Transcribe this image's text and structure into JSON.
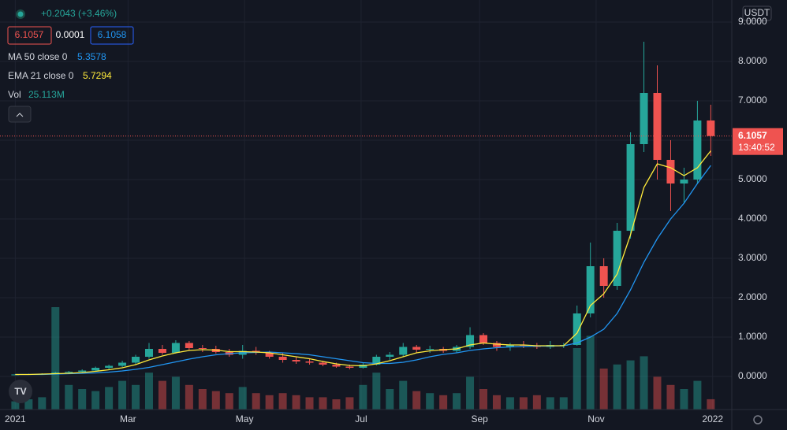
{
  "chart_data": {
    "type": "candlestick",
    "header": {
      "change": "+0.2043 (+3.46%)",
      "bid": "6.1057",
      "spread": "0.0001",
      "ask": "6.1058",
      "vol_name": "Vol",
      "vol_label": "25.113M",
      "currency": "USDT",
      "countdown": "13:40:52"
    },
    "xlim": [
      -8,
      375
    ],
    "xticks": [
      {
        "value": 0,
        "label": "2021"
      },
      {
        "value": 59,
        "label": "Mar"
      },
      {
        "value": 120,
        "label": "May"
      },
      {
        "value": 181,
        "label": "Jul"
      },
      {
        "value": 243,
        "label": "Sep"
      },
      {
        "value": 304,
        "label": "Nov"
      },
      {
        "value": 365,
        "label": "2022"
      }
    ],
    "ylim": [
      -0.84,
      9.56
    ],
    "yticks": [
      {
        "value": 0,
        "label": "0.0000"
      },
      {
        "value": 1,
        "label": "1.0000"
      },
      {
        "value": 2,
        "label": "2.0000"
      },
      {
        "value": 3,
        "label": "3.0000"
      },
      {
        "value": 4,
        "label": "4.0000"
      },
      {
        "value": 5,
        "label": "5.0000"
      },
      {
        "value": 6,
        "label": "6.0000"
      },
      {
        "value": 7,
        "label": "7.0000"
      },
      {
        "value": 8,
        "label": "8.0000"
      },
      {
        "value": 9,
        "label": "9.0000"
      }
    ],
    "grid": true,
    "up_color": "#26a69a",
    "down_color": "#ef5350",
    "x": [
      0,
      7,
      14,
      21,
      28,
      35,
      42,
      49,
      56,
      63,
      70,
      77,
      84,
      91,
      98,
      105,
      112,
      119,
      126,
      133,
      140,
      147,
      154,
      161,
      168,
      175,
      182,
      189,
      196,
      203,
      210,
      217,
      224,
      231,
      238,
      245,
      252,
      259,
      266,
      273,
      280,
      287,
      294,
      301,
      308,
      315,
      322,
      329,
      336,
      343,
      350,
      357,
      364
    ],
    "open": [
      0.05,
      0.05,
      0.06,
      0.07,
      0.1,
      0.12,
      0.15,
      0.22,
      0.27,
      0.35,
      0.5,
      0.7,
      0.6,
      0.85,
      0.72,
      0.7,
      0.62,
      0.55,
      0.65,
      0.6,
      0.5,
      0.42,
      0.38,
      0.35,
      0.3,
      0.25,
      0.22,
      0.3,
      0.5,
      0.55,
      0.75,
      0.68,
      0.7,
      0.65,
      0.75,
      1.05,
      0.85,
      0.75,
      0.8,
      0.78,
      0.75,
      0.8,
      0.8,
      1.6,
      2.8,
      2.3,
      3.7,
      5.9,
      7.2,
      5.5,
      4.9,
      5.0,
      6.5
    ],
    "high": [
      0.06,
      0.07,
      0.08,
      0.12,
      0.14,
      0.18,
      0.25,
      0.3,
      0.4,
      0.55,
      0.85,
      0.8,
      0.92,
      0.9,
      0.8,
      0.78,
      0.7,
      0.8,
      0.75,
      0.65,
      0.6,
      0.5,
      0.45,
      0.4,
      0.35,
      0.3,
      0.35,
      0.55,
      0.62,
      0.85,
      0.8,
      0.78,
      0.75,
      0.8,
      1.25,
      1.1,
      0.9,
      0.85,
      0.9,
      0.85,
      0.9,
      0.85,
      1.8,
      3.4,
      3.0,
      3.9,
      6.2,
      8.5,
      7.9,
      6.0,
      5.3,
      7.0,
      6.9
    ],
    "low": [
      0.04,
      0.04,
      0.05,
      0.06,
      0.08,
      0.1,
      0.13,
      0.18,
      0.24,
      0.3,
      0.45,
      0.55,
      0.58,
      0.65,
      0.62,
      0.58,
      0.5,
      0.45,
      0.55,
      0.45,
      0.35,
      0.32,
      0.3,
      0.26,
      0.22,
      0.18,
      0.2,
      0.28,
      0.42,
      0.5,
      0.6,
      0.6,
      0.6,
      0.6,
      0.7,
      0.8,
      0.65,
      0.65,
      0.72,
      0.7,
      0.7,
      0.72,
      0.78,
      1.5,
      2.0,
      2.2,
      3.5,
      5.7,
      5.0,
      4.2,
      4.4,
      4.9,
      5.6
    ],
    "close": [
      0.05,
      0.06,
      0.07,
      0.1,
      0.12,
      0.15,
      0.22,
      0.27,
      0.35,
      0.5,
      0.7,
      0.6,
      0.85,
      0.72,
      0.7,
      0.62,
      0.55,
      0.65,
      0.6,
      0.5,
      0.42,
      0.38,
      0.35,
      0.3,
      0.25,
      0.22,
      0.3,
      0.5,
      0.55,
      0.75,
      0.68,
      0.7,
      0.65,
      0.75,
      1.05,
      0.85,
      0.75,
      0.8,
      0.78,
      0.75,
      0.8,
      0.8,
      1.6,
      2.8,
      2.3,
      3.7,
      5.9,
      7.2,
      5.5,
      4.9,
      5.0,
      6.5,
      6.1057
    ],
    "volume": [
      20,
      25,
      30,
      250,
      60,
      50,
      45,
      55,
      70,
      60,
      90,
      70,
      80,
      60,
      50,
      45,
      40,
      55,
      40,
      35,
      40,
      35,
      30,
      30,
      25,
      30,
      60,
      90,
      50,
      70,
      45,
      40,
      35,
      40,
      80,
      50,
      35,
      30,
      30,
      35,
      30,
      30,
      150,
      180,
      100,
      110,
      120,
      130,
      80,
      60,
      50,
      70,
      25.113
    ],
    "overlays": [
      {
        "name": "MA 50 close 0",
        "color": "#2196f3",
        "values": [
          0.05,
          0.05,
          0.05,
          0.06,
          0.07,
          0.08,
          0.09,
          0.11,
          0.14,
          0.18,
          0.23,
          0.3,
          0.37,
          0.44,
          0.5,
          0.55,
          0.58,
          0.6,
          0.61,
          0.62,
          0.6,
          0.58,
          0.55,
          0.5,
          0.45,
          0.4,
          0.35,
          0.33,
          0.33,
          0.36,
          0.42,
          0.5,
          0.56,
          0.6,
          0.66,
          0.7,
          0.73,
          0.75,
          0.76,
          0.77,
          0.77,
          0.78,
          0.85,
          1.0,
          1.2,
          1.6,
          2.2,
          2.9,
          3.5,
          4.0,
          4.4,
          4.9,
          5.3578
        ]
      },
      {
        "name": "EMA 21 close 0",
        "color": "#ffeb3b",
        "values": [
          0.05,
          0.05,
          0.06,
          0.07,
          0.08,
          0.1,
          0.13,
          0.17,
          0.22,
          0.3,
          0.42,
          0.52,
          0.6,
          0.66,
          0.68,
          0.67,
          0.63,
          0.63,
          0.62,
          0.6,
          0.55,
          0.5,
          0.45,
          0.38,
          0.32,
          0.28,
          0.27,
          0.32,
          0.4,
          0.5,
          0.6,
          0.65,
          0.68,
          0.7,
          0.8,
          0.85,
          0.82,
          0.8,
          0.8,
          0.78,
          0.78,
          0.78,
          1.1,
          1.8,
          2.1,
          2.6,
          3.6,
          4.8,
          5.4,
          5.3,
          5.1,
          5.3,
          5.7294
        ]
      }
    ]
  }
}
